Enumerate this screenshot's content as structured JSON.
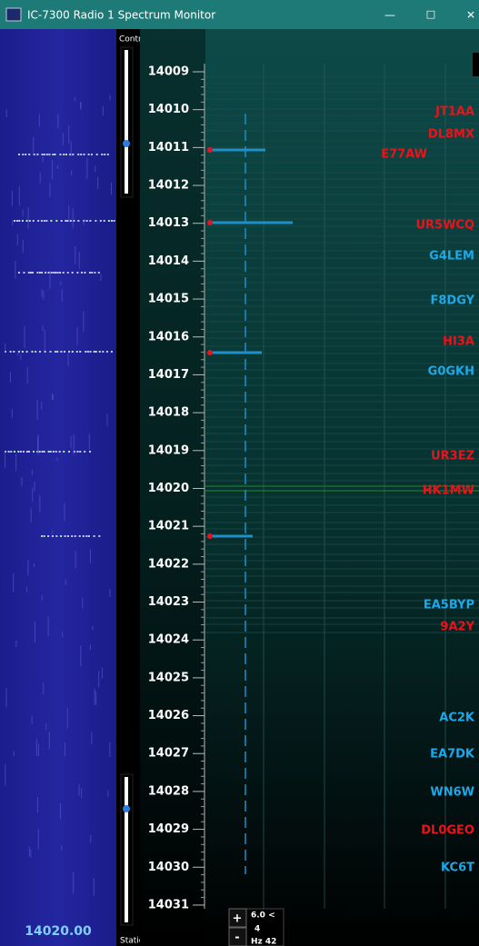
{
  "window": {
    "title": "IC-7300 Radio 1 Spectrum Monitor",
    "controls": [
      "—",
      "☐",
      "✕"
    ]
  },
  "contrast_label": "Contrast",
  "static_label": "Static",
  "frequency_display": "14020.00",
  "frequency_scale": [
    14009,
    14010,
    14011,
    14012,
    14013,
    14014,
    14015,
    14016,
    14017,
    14018,
    14019,
    14020,
    14021,
    14022,
    14023,
    14024,
    14025,
    14026,
    14027,
    14028,
    14029,
    14030,
    14031
  ],
  "spots": [
    {
      "call": "JT1AA",
      "color": "#e8141c"
    },
    {
      "call": "DL8MX",
      "color": "#e8141c"
    },
    {
      "call": "E77AW",
      "color": "#e8141c"
    },
    {
      "call": "UR5WCQ",
      "color": "#e8141c"
    },
    {
      "call": "G4LEM",
      "color": "#1ea8e8"
    },
    {
      "call": "F8DGY",
      "color": "#1ea8e8"
    },
    {
      "call": "HI3A",
      "color": "#e8141c"
    },
    {
      "call": "G0GKH",
      "color": "#1ea8e8"
    },
    {
      "call": "UR3EZ",
      "color": "#e8141c"
    },
    {
      "call": "HK1MW",
      "color": "#e8141c"
    },
    {
      "call": "EA5BYP",
      "color": "#1ea8e8"
    },
    {
      "call": "9A2Y",
      "color": "#e8141c"
    },
    {
      "call": "AC2K",
      "color": "#1ea8e8"
    },
    {
      "call": "EA7DK",
      "color": "#1ea8e8"
    },
    {
      "call": "WN6W",
      "color": "#1ea8e8"
    },
    {
      "call": "DL0GEO",
      "color": "#e8141c"
    },
    {
      "call": "KC6T",
      "color": "#1ea8e8"
    }
  ],
  "filter": {
    "plus": "+",
    "minus": "-",
    "lines": [
      "6.0 <",
      "4",
      "Hz 42"
    ]
  }
}
